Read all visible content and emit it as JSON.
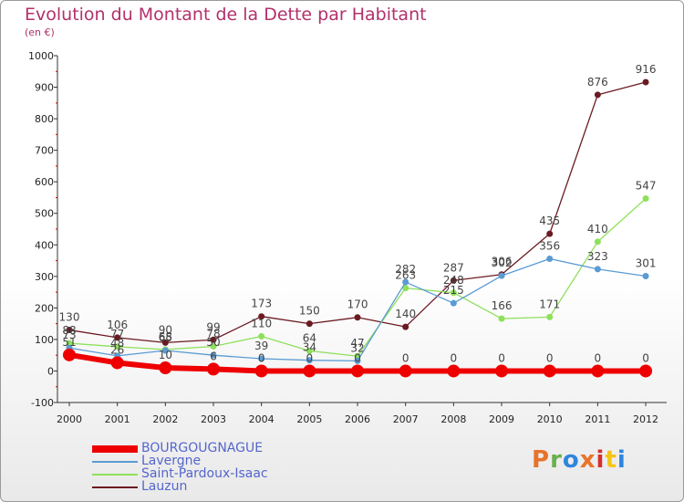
{
  "title": "Evolution du Montant de la Dette par Habitant",
  "subtitle": "(en €)",
  "logo": {
    "text": "Proxiti",
    "colors": [
      "#e8732a",
      "#6ab04c",
      "#2e86de",
      "#e8732a",
      "#d63031",
      "#f5c518",
      "#2e86de"
    ]
  },
  "chart_data": {
    "type": "line",
    "x": [
      "2000",
      "2001",
      "2002",
      "2003",
      "2004",
      "2005",
      "2006",
      "2007",
      "2008",
      "2009",
      "2010",
      "2011",
      "2012"
    ],
    "ylim": [
      -100,
      1000
    ],
    "yticks": [
      "-100",
      "0",
      "100",
      "200",
      "300",
      "400",
      "500",
      "600",
      "700",
      "800",
      "900",
      "1000"
    ],
    "grid": false,
    "legend_position": "bottom-left",
    "series": [
      {
        "name": "BOURGOUGNAGUE",
        "color": "#ee0000",
        "values": [
          51,
          26,
          10,
          6,
          0,
          0,
          0,
          0,
          0,
          0,
          0,
          0,
          0
        ],
        "labels": [
          "51",
          "26",
          "10",
          "6",
          "0",
          "0",
          "0",
          "0",
          "0",
          "0",
          "0",
          "0",
          "0"
        ]
      },
      {
        "name": "Lavergne",
        "color": "#5a9bd4",
        "values": [
          73,
          48,
          65,
          50,
          39,
          34,
          32,
          282,
          215,
          302,
          356,
          323,
          301
        ],
        "labels": [
          "73",
          "48",
          "65",
          "50",
          "39",
          "34",
          "32",
          "282",
          "215",
          "302",
          "356",
          "323",
          "301"
        ]
      },
      {
        "name": "Saint-Pardoux-Isaac",
        "color": "#8ee05a",
        "values": [
          88,
          77,
          68,
          78,
          110,
          64,
          47,
          263,
          248,
          166,
          171,
          410,
          547
        ],
        "labels": [
          "88",
          "77",
          "68",
          "78",
          "110",
          "64",
          "47",
          "263",
          "248",
          "166",
          "171",
          "410",
          "547"
        ]
      },
      {
        "name": "Lauzun",
        "color": "#6b1a22",
        "values": [
          130,
          106,
          90,
          99,
          173,
          150,
          170,
          140,
          287,
          306,
          435,
          876,
          916
        ],
        "labels": [
          "130",
          "106",
          "90",
          "99",
          "173",
          "150",
          "170",
          "140",
          "287",
          "306",
          "435",
          "876",
          "916"
        ]
      }
    ]
  }
}
